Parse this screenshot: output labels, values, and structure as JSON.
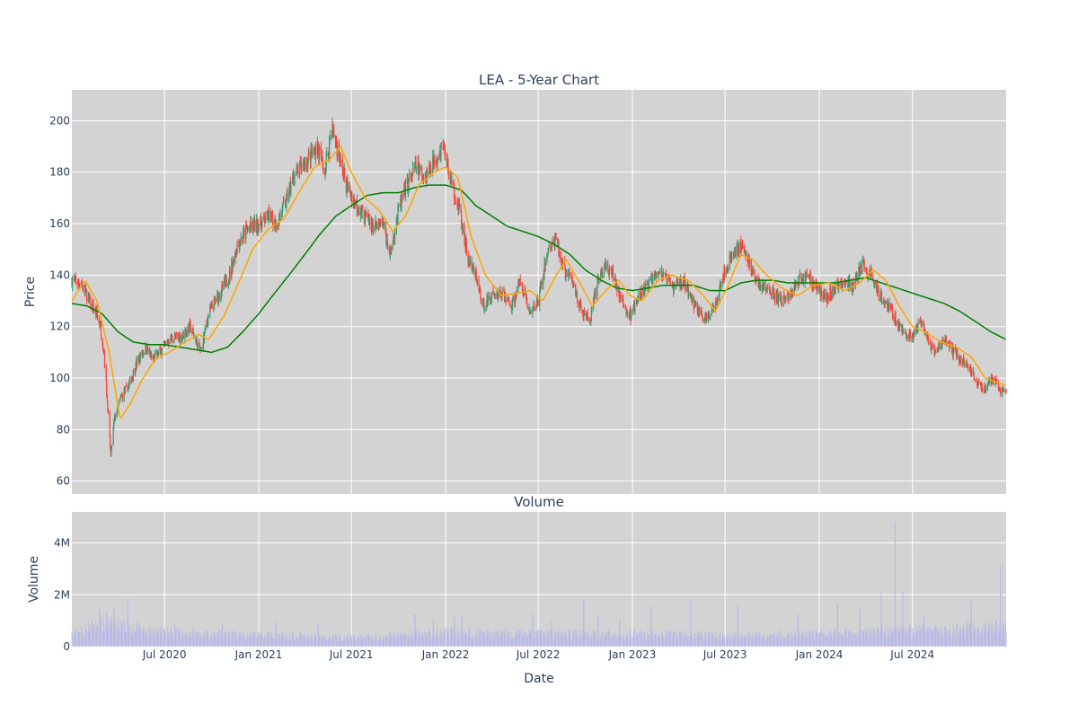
{
  "chart_data": [
    {
      "type": "candlestick",
      "title": "LEA - 5-Year Chart",
      "xlabel": "",
      "ylabel": "Price",
      "ylim": [
        55,
        212
      ],
      "yticks": [
        60,
        80,
        100,
        120,
        140,
        160,
        180,
        200
      ],
      "x_range": [
        "2020-01-02",
        "2024-12-31"
      ],
      "grid": true,
      "colors": {
        "background": "#d3d3d3",
        "grid": "#ffffff",
        "up": "#3d9970",
        "down": "#ff4136",
        "ma_short": "#ffa500",
        "ma_long": "#008000"
      },
      "price_anchors": [
        [
          "2020-01-02",
          138
        ],
        [
          "2020-01-20",
          137
        ],
        [
          "2020-02-10",
          128
        ],
        [
          "2020-02-25",
          122
        ],
        [
          "2020-03-05",
          110
        ],
        [
          "2020-03-18",
          70
        ],
        [
          "2020-03-25",
          84
        ],
        [
          "2020-04-06",
          92
        ],
        [
          "2020-04-22",
          97
        ],
        [
          "2020-05-08",
          106
        ],
        [
          "2020-05-25",
          112
        ],
        [
          "2020-06-08",
          107
        ],
        [
          "2020-06-25",
          111
        ],
        [
          "2020-07-10",
          115
        ],
        [
          "2020-08-03",
          116
        ],
        [
          "2020-08-20",
          120
        ],
        [
          "2020-09-10",
          110
        ],
        [
          "2020-09-25",
          125
        ],
        [
          "2020-10-15",
          132
        ],
        [
          "2020-11-05",
          140
        ],
        [
          "2020-11-20",
          152
        ],
        [
          "2020-12-10",
          158
        ],
        [
          "2021-01-04",
          160
        ],
        [
          "2021-01-20",
          163
        ],
        [
          "2021-02-05",
          160
        ],
        [
          "2021-02-22",
          168
        ],
        [
          "2021-03-10",
          178
        ],
        [
          "2021-03-25",
          182
        ],
        [
          "2021-04-10",
          185
        ],
        [
          "2021-04-25",
          190
        ],
        [
          "2021-05-10",
          180
        ],
        [
          "2021-05-24",
          198
        ],
        [
          "2021-06-08",
          185
        ],
        [
          "2021-06-22",
          175
        ],
        [
          "2021-07-08",
          168
        ],
        [
          "2021-07-28",
          163
        ],
        [
          "2021-08-15",
          158
        ],
        [
          "2021-09-01",
          160
        ],
        [
          "2021-09-15",
          148
        ],
        [
          "2021-10-01",
          165
        ],
        [
          "2021-10-20",
          176
        ],
        [
          "2021-11-05",
          182
        ],
        [
          "2021-11-22",
          178
        ],
        [
          "2021-12-10",
          185
        ],
        [
          "2021-12-28",
          190
        ],
        [
          "2022-01-12",
          176
        ],
        [
          "2022-01-28",
          165
        ],
        [
          "2022-02-15",
          145
        ],
        [
          "2022-03-01",
          140
        ],
        [
          "2022-03-15",
          128
        ],
        [
          "2022-04-01",
          132
        ],
        [
          "2022-04-20",
          133
        ],
        [
          "2022-05-10",
          128
        ],
        [
          "2022-05-28",
          138
        ],
        [
          "2022-06-15",
          125
        ],
        [
          "2022-07-01",
          130
        ],
        [
          "2022-07-20",
          150
        ],
        [
          "2022-08-05",
          153
        ],
        [
          "2022-08-20",
          142
        ],
        [
          "2022-09-05",
          138
        ],
        [
          "2022-09-25",
          125
        ],
        [
          "2022-10-10",
          122
        ],
        [
          "2022-10-28",
          140
        ],
        [
          "2022-11-10",
          143
        ],
        [
          "2022-11-25",
          140
        ],
        [
          "2022-12-10",
          130
        ],
        [
          "2022-12-28",
          124
        ],
        [
          "2023-01-15",
          132
        ],
        [
          "2023-02-01",
          136
        ],
        [
          "2023-02-15",
          142
        ],
        [
          "2023-03-01",
          140
        ],
        [
          "2023-03-20",
          135
        ],
        [
          "2023-04-10",
          138
        ],
        [
          "2023-04-28",
          130
        ],
        [
          "2023-05-15",
          125
        ],
        [
          "2023-05-28",
          122
        ],
        [
          "2023-06-12",
          130
        ],
        [
          "2023-06-28",
          140
        ],
        [
          "2023-07-15",
          148
        ],
        [
          "2023-07-30",
          152
        ],
        [
          "2023-08-15",
          146
        ],
        [
          "2023-08-30",
          138
        ],
        [
          "2023-09-15",
          135
        ],
        [
          "2023-10-01",
          133
        ],
        [
          "2023-10-20",
          130
        ],
        [
          "2023-11-05",
          132
        ],
        [
          "2023-11-20",
          138
        ],
        [
          "2023-12-10",
          140
        ],
        [
          "2023-12-28",
          135
        ],
        [
          "2024-01-15",
          131
        ],
        [
          "2024-02-01",
          135
        ],
        [
          "2024-02-20",
          138
        ],
        [
          "2024-03-05",
          135
        ],
        [
          "2024-03-25",
          144
        ],
        [
          "2024-04-10",
          140
        ],
        [
          "2024-04-28",
          133
        ],
        [
          "2024-05-15",
          128
        ],
        [
          "2024-06-01",
          122
        ],
        [
          "2024-06-15",
          117
        ],
        [
          "2024-07-01",
          116
        ],
        [
          "2024-07-15",
          122
        ],
        [
          "2024-08-01",
          114
        ],
        [
          "2024-08-15",
          110
        ],
        [
          "2024-09-01",
          115
        ],
        [
          "2024-09-20",
          110
        ],
        [
          "2024-10-05",
          107
        ],
        [
          "2024-10-20",
          104
        ],
        [
          "2024-11-05",
          98
        ],
        [
          "2024-11-20",
          96
        ],
        [
          "2024-12-05",
          100
        ],
        [
          "2024-12-20",
          95
        ],
        [
          "2024-12-31",
          94
        ]
      ],
      "ma_short_anchors": [
        [
          "2020-01-02",
          130
        ],
        [
          "2020-01-28",
          138
        ],
        [
          "2020-02-20",
          130
        ],
        [
          "2020-03-15",
          110
        ],
        [
          "2020-04-05",
          84
        ],
        [
          "2020-04-25",
          90
        ],
        [
          "2020-05-20",
          100
        ],
        [
          "2020-06-15",
          108
        ],
        [
          "2020-07-10",
          110
        ],
        [
          "2020-08-10",
          114
        ],
        [
          "2020-09-05",
          117
        ],
        [
          "2020-09-25",
          115
        ],
        [
          "2020-10-25",
          124
        ],
        [
          "2020-11-25",
          138
        ],
        [
          "2020-12-20",
          150
        ],
        [
          "2021-01-20",
          158
        ],
        [
          "2021-02-20",
          162
        ],
        [
          "2021-03-20",
          172
        ],
        [
          "2021-04-20",
          182
        ],
        [
          "2021-05-20",
          185
        ],
        [
          "2021-06-10",
          190
        ],
        [
          "2021-07-01",
          180
        ],
        [
          "2021-07-28",
          170
        ],
        [
          "2021-08-25",
          165
        ],
        [
          "2021-09-20",
          157
        ],
        [
          "2021-10-15",
          163
        ],
        [
          "2021-11-10",
          175
        ],
        [
          "2021-12-10",
          180
        ],
        [
          "2022-01-01",
          182
        ],
        [
          "2022-01-25",
          178
        ],
        [
          "2022-02-20",
          155
        ],
        [
          "2022-03-20",
          140
        ],
        [
          "2022-04-20",
          132
        ],
        [
          "2022-05-20",
          133
        ],
        [
          "2022-06-15",
          134
        ],
        [
          "2022-07-10",
          130
        ],
        [
          "2022-08-05",
          140
        ],
        [
          "2022-08-25",
          146
        ],
        [
          "2022-09-20",
          137
        ],
        [
          "2022-10-15",
          128
        ],
        [
          "2022-11-10",
          134
        ],
        [
          "2022-12-05",
          138
        ],
        [
          "2022-12-28",
          132
        ],
        [
          "2023-01-20",
          130
        ],
        [
          "2023-02-20",
          138
        ],
        [
          "2023-03-20",
          140
        ],
        [
          "2023-04-20",
          138
        ],
        [
          "2023-05-20",
          132
        ],
        [
          "2023-06-12",
          126
        ],
        [
          "2023-07-05",
          135
        ],
        [
          "2023-08-01",
          148
        ],
        [
          "2023-08-25",
          146
        ],
        [
          "2023-09-20",
          140
        ],
        [
          "2023-10-20",
          135
        ],
        [
          "2023-11-20",
          132
        ],
        [
          "2023-12-20",
          136
        ],
        [
          "2024-01-20",
          137
        ],
        [
          "2024-02-20",
          134
        ],
        [
          "2024-03-20",
          137
        ],
        [
          "2024-04-15",
          142
        ],
        [
          "2024-05-10",
          138
        ],
        [
          "2024-06-05",
          128
        ],
        [
          "2024-07-01",
          120
        ],
        [
          "2024-07-25",
          118
        ],
        [
          "2024-08-25",
          114
        ],
        [
          "2024-09-25",
          112
        ],
        [
          "2024-10-25",
          108
        ],
        [
          "2024-11-20",
          100
        ],
        [
          "2024-12-31",
          97
        ]
      ],
      "ma_long_anchors": [
        [
          "2020-01-02",
          129
        ],
        [
          "2020-02-01",
          128
        ],
        [
          "2020-03-01",
          125
        ],
        [
          "2020-04-01",
          118
        ],
        [
          "2020-05-01",
          114
        ],
        [
          "2020-06-01",
          113
        ],
        [
          "2020-07-01",
          113
        ],
        [
          "2020-08-01",
          112
        ],
        [
          "2020-09-01",
          111
        ],
        [
          "2020-10-01",
          110
        ],
        [
          "2020-11-01",
          112
        ],
        [
          "2020-12-01",
          118
        ],
        [
          "2021-01-01",
          125
        ],
        [
          "2021-02-01",
          133
        ],
        [
          "2021-03-01",
          140
        ],
        [
          "2021-04-01",
          148
        ],
        [
          "2021-05-01",
          156
        ],
        [
          "2021-06-01",
          163
        ],
        [
          "2021-07-01",
          167
        ],
        [
          "2021-08-01",
          171
        ],
        [
          "2021-09-01",
          172
        ],
        [
          "2021-10-01",
          172
        ],
        [
          "2021-11-01",
          174
        ],
        [
          "2021-12-01",
          175
        ],
        [
          "2022-01-01",
          175
        ],
        [
          "2022-02-01",
          173
        ],
        [
          "2022-03-01",
          167
        ],
        [
          "2022-04-01",
          163
        ],
        [
          "2022-05-01",
          159
        ],
        [
          "2022-06-01",
          157
        ],
        [
          "2022-07-01",
          155
        ],
        [
          "2022-08-01",
          152
        ],
        [
          "2022-09-01",
          148
        ],
        [
          "2022-10-01",
          142
        ],
        [
          "2022-11-01",
          138
        ],
        [
          "2022-12-01",
          135
        ],
        [
          "2023-01-01",
          134
        ],
        [
          "2023-02-01",
          135
        ],
        [
          "2023-03-01",
          136
        ],
        [
          "2023-04-01",
          136
        ],
        [
          "2023-05-01",
          136
        ],
        [
          "2023-06-01",
          134
        ],
        [
          "2023-07-01",
          134
        ],
        [
          "2023-08-01",
          137
        ],
        [
          "2023-09-01",
          138
        ],
        [
          "2023-10-01",
          138
        ],
        [
          "2023-11-01",
          137
        ],
        [
          "2023-12-01",
          137
        ],
        [
          "2024-01-01",
          137
        ],
        [
          "2024-02-01",
          137
        ],
        [
          "2024-03-01",
          138
        ],
        [
          "2024-04-01",
          139
        ],
        [
          "2024-05-01",
          137
        ],
        [
          "2024-06-01",
          135
        ],
        [
          "2024-07-01",
          133
        ],
        [
          "2024-08-01",
          131
        ],
        [
          "2024-09-01",
          129
        ],
        [
          "2024-10-01",
          126
        ],
        [
          "2024-11-01",
          122
        ],
        [
          "2024-12-01",
          118
        ],
        [
          "2024-12-31",
          115
        ]
      ]
    },
    {
      "type": "bar",
      "title": "Volume",
      "xlabel": "Date",
      "ylabel": "Volume",
      "ylim": [
        0,
        5200000
      ],
      "yticks": [
        0,
        2000000,
        4000000
      ],
      "ytick_labels": [
        "0",
        "2M",
        "4M"
      ],
      "xticks": [
        "2020-07-01",
        "2021-01-01",
        "2021-07-01",
        "2022-01-01",
        "2022-07-01",
        "2023-01-01",
        "2023-07-01",
        "2024-01-01",
        "2024-07-01"
      ],
      "xtick_labels": [
        "Jul 2020",
        "Jan 2021",
        "Jul 2021",
        "Jan 2022",
        "Jul 2022",
        "Jan 2023",
        "Jul 2023",
        "Jan 2024",
        "Jul 2024"
      ],
      "colors": {
        "background": "#d3d3d3",
        "grid": "#ffffff",
        "bar": "#b8b8e8"
      },
      "base_volume_anchors": [
        [
          "2020-01-02",
          500000
        ],
        [
          "2020-03-01",
          900000
        ],
        [
          "2020-04-15",
          800000
        ],
        [
          "2020-07-01",
          550000
        ],
        [
          "2021-01-01",
          450000
        ],
        [
          "2021-07-01",
          350000
        ],
        [
          "2022-01-01",
          550000
        ],
        [
          "2022-07-01",
          500000
        ],
        [
          "2023-01-01",
          500000
        ],
        [
          "2023-07-01",
          450000
        ],
        [
          "2024-01-01",
          500000
        ],
        [
          "2024-07-01",
          650000
        ],
        [
          "2024-12-31",
          800000
        ]
      ],
      "volume_spikes": [
        [
          "2020-02-25",
          1400000
        ],
        [
          "2020-03-10",
          1300000
        ],
        [
          "2020-03-24",
          1500000
        ],
        [
          "2020-04-20",
          1850000
        ],
        [
          "2020-07-21",
          900000
        ],
        [
          "2020-10-22",
          850000
        ],
        [
          "2021-02-04",
          950000
        ],
        [
          "2021-04-27",
          900000
        ],
        [
          "2021-11-02",
          1250000
        ],
        [
          "2021-12-08",
          1050000
        ],
        [
          "2022-01-18",
          1200000
        ],
        [
          "2022-02-02",
          1150000
        ],
        [
          "2022-06-20",
          1300000
        ],
        [
          "2022-07-27",
          1000000
        ],
        [
          "2022-09-28",
          1750000
        ],
        [
          "2022-10-26",
          1200000
        ],
        [
          "2022-12-07",
          1050000
        ],
        [
          "2023-02-07",
          1550000
        ],
        [
          "2023-04-25",
          1800000
        ],
        [
          "2023-07-26",
          1600000
        ],
        [
          "2023-11-20",
          1250000
        ],
        [
          "2024-02-06",
          1650000
        ],
        [
          "2024-03-20",
          1450000
        ],
        [
          "2024-05-01",
          2100000
        ],
        [
          "2024-05-28",
          4800000
        ],
        [
          "2024-06-12",
          2150000
        ],
        [
          "2024-07-24",
          1150000
        ],
        [
          "2024-10-24",
          1750000
        ],
        [
          "2024-12-20",
          3150000
        ]
      ]
    }
  ]
}
